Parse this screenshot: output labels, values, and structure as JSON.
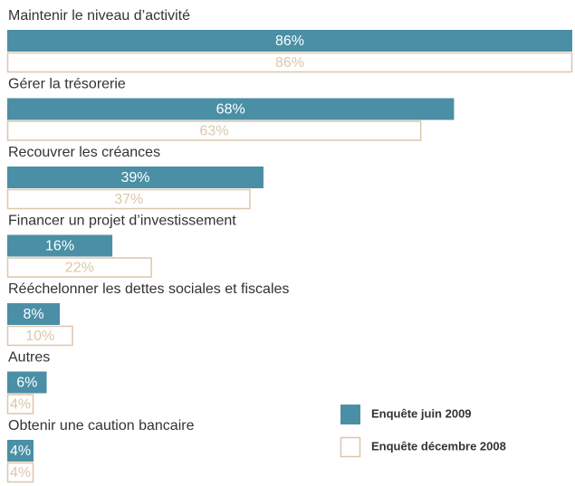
{
  "chart_data": {
    "type": "bar",
    "orientation": "horizontal",
    "categories": [
      "Maintenir le niveau d’activité",
      "Gérer la trésorerie",
      "Recouvrer les créances",
      "Financer un projet d’investissement",
      "Rééchelonner les dettes sociales et fiscales",
      "Autres",
      "Obtenir une caution bancaire"
    ],
    "series": [
      {
        "name": "Enquête juin 2009",
        "color": "#4a8fa6",
        "values": [
          86,
          68,
          39,
          16,
          8,
          6,
          4
        ],
        "value_labels": [
          "86%",
          "68%",
          "39%",
          "16%",
          "8%",
          "6%",
          "4%"
        ]
      },
      {
        "name": "Enquête décembre 2008",
        "color": "#dcc6ab",
        "values": [
          86,
          63,
          37,
          22,
          10,
          4,
          4
        ],
        "value_labels": [
          "86%",
          "63%",
          "37%",
          "22%",
          "10%",
          "4%",
          "4%"
        ]
      }
    ],
    "legend": "bottom-right"
  }
}
